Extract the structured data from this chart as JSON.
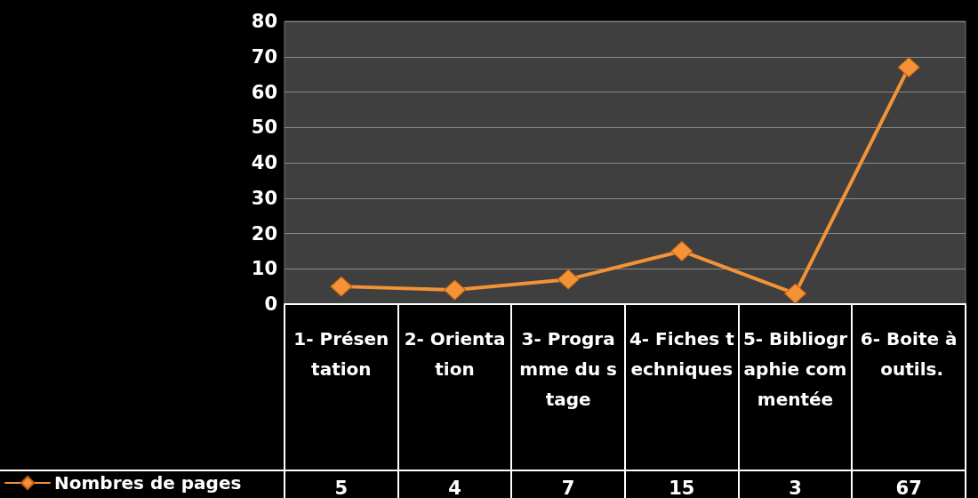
{
  "chart_data": {
    "type": "line",
    "categories": [
      "1- Présentation",
      "2- Orientation",
      "3- Programme du stage",
      "4- Fiches techniques",
      "5- Bibliographie commentée",
      "6- Boite à outils."
    ],
    "series": [
      {
        "name": "Nombres de pages",
        "color": "#f39237",
        "values": [
          5,
          4,
          7,
          15,
          3,
          67
        ]
      }
    ],
    "ylim": [
      0,
      80
    ],
    "yticks": [
      0,
      10,
      20,
      30,
      40,
      50,
      60,
      70,
      80
    ],
    "grid": "y",
    "legend": "bottom left",
    "marker": "diamond",
    "line_style": "solid",
    "data_labels": true
  }
}
